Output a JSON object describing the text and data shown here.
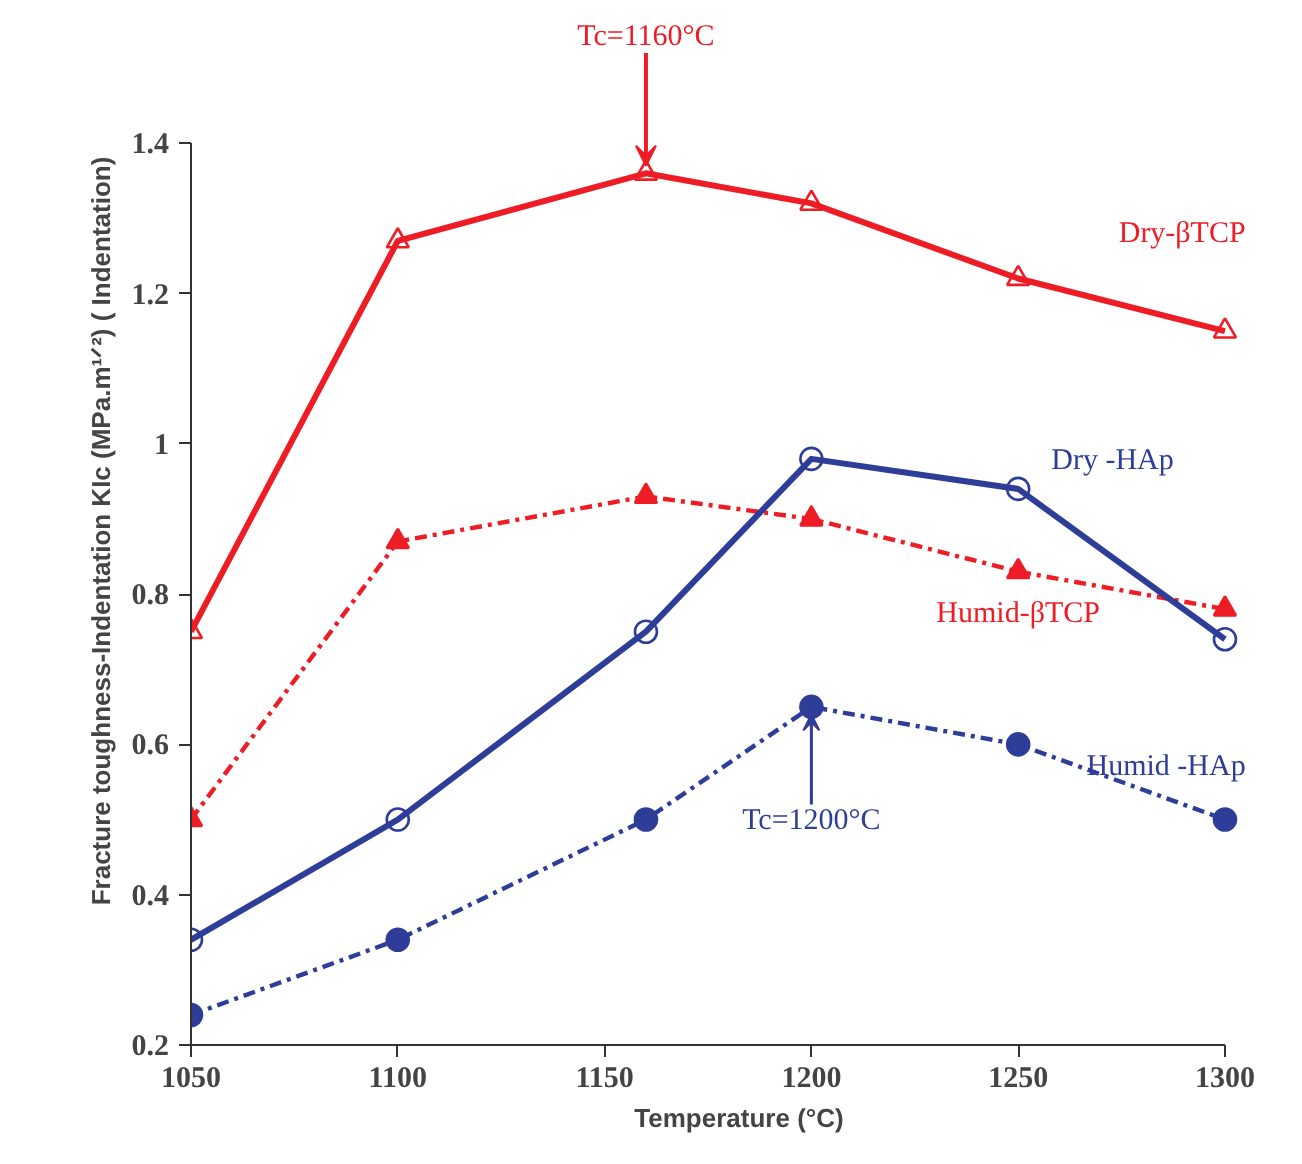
{
  "chart_data": {
    "type": "line",
    "xlabel": "Temperature (°C)",
    "ylabel": "Fracture toughness-Indentation KIc (MPa.m¹ᐟ²) ( Indentation)",
    "x": [
      1050,
      1100,
      1160,
      1200,
      1250,
      1300
    ],
    "series": [
      {
        "name": "Dry-βTCP",
        "color": "#ee1c24",
        "values": [
          0.75,
          1.27,
          1.36,
          1.32,
          1.22,
          1.15
        ],
        "marker": "triangle",
        "line_style": "solid"
      },
      {
        "name": "Humid-βTCP",
        "color": "#ee1c24",
        "values": [
          0.5,
          0.87,
          0.93,
          0.9,
          0.83,
          0.78
        ],
        "marker": "triangle",
        "line_style": "dashed"
      },
      {
        "name": "Dry -HAp",
        "color": "#2e3d98",
        "values": [
          0.34,
          0.5,
          0.75,
          0.98,
          0.94,
          0.74
        ],
        "marker": "circle",
        "line_style": "solid"
      },
      {
        "name": "Humid -HAp",
        "color": "#2e3d98",
        "values": [
          0.24,
          0.34,
          0.5,
          0.65,
          0.6,
          0.5
        ],
        "marker": "circle",
        "line_style": "dashed"
      }
    ],
    "annotations": [
      {
        "text": "Tc=1160°C",
        "x": 1160,
        "y": 1.36
      },
      {
        "text": "Tc=1200°C",
        "x": 1200,
        "y": 0.65
      }
    ],
    "xlim": [
      1050,
      1300
    ],
    "xticks": [
      1050,
      1100,
      1150,
      1200,
      1250,
      1300
    ],
    "ylim": [
      0.2,
      1.4
    ],
    "yticks": [
      0.2,
      0.4,
      0.6,
      0.8,
      1,
      1.2,
      1.4
    ],
    "grid": false
  }
}
